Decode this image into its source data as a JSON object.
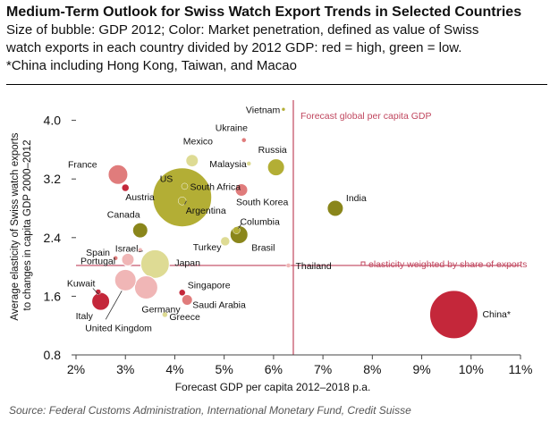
{
  "header": {
    "title": "Medium-Term Outlook for Swiss Watch Export Trends in Selected Countries",
    "subtitle_lines": [
      "Size of bubble: GDP 2012; Color: Market penetration, defined as value of Swiss",
      "watch exports in each country divided by 2012 GDP: red = high, green = low.",
      "*China including Hong Kong, Taiwan, and Macao"
    ]
  },
  "source": "Source: Federal Customs Administration, International Monetary Fund, Credit Suisse",
  "colors": {
    "red": "#c4273a",
    "pink": "#e07c7c",
    "lightpink": "#f0b6b6",
    "olive": "#8a861b",
    "yellow": "#b3ae35",
    "lightyellow": "#dedb94",
    "refline": "#c0465e",
    "axis": "#444444"
  },
  "chart_data": {
    "type": "scatter",
    "bubble": true,
    "xlabel": "Forecast GDP per capita 2012–2018 p.a.",
    "ylabel": "Average elasticity of Swiss watch exports to changes in capita GDP 2000–2012",
    "xlim": [
      2,
      11
    ],
    "ylim": [
      0.8,
      4.3
    ],
    "x_ticks": [
      2,
      3,
      4,
      5,
      6,
      7,
      8,
      9,
      10,
      11
    ],
    "x_tick_labels": [
      "2%",
      "3%",
      "4%",
      "5%",
      "6%",
      "7%",
      "8%",
      "9%",
      "10%",
      "11%"
    ],
    "y_ticks": [
      0.8,
      1.6,
      2.4,
      3.2,
      4.0
    ],
    "y_tick_labels": [
      "0.8",
      "1.6",
      "2.4",
      "3.2",
      "4.0"
    ],
    "reference_lines": [
      {
        "orientation": "vertical",
        "value": 6.4,
        "label": "Forecast global per capita GDP"
      },
      {
        "orientation": "horizontal",
        "value": 2.02,
        "label": "elasticity weighted by share of exports"
      }
    ],
    "points": [
      {
        "name": "Vietnam",
        "x": 6.2,
        "y": 4.15,
        "r": 2,
        "color": "yellow"
      },
      {
        "name": "Ukraine",
        "x": 5.4,
        "y": 3.73,
        "r": 2.5,
        "color": "pink"
      },
      {
        "name": "Mexico",
        "x": 4.35,
        "y": 3.45,
        "r": 7,
        "color": "lightyellow"
      },
      {
        "name": "Malaysia",
        "x": 5.5,
        "y": 3.41,
        "r": 2.5,
        "color": "lightyellow"
      },
      {
        "name": "Russia",
        "x": 6.05,
        "y": 3.36,
        "r": 9.5,
        "color": "yellow"
      },
      {
        "name": "France",
        "x": 2.85,
        "y": 3.26,
        "r": 11,
        "color": "pink"
      },
      {
        "name": "Austria",
        "x": 3.0,
        "y": 3.08,
        "r": 4,
        "color": "red"
      },
      {
        "name": "US",
        "x": 4.15,
        "y": 2.95,
        "r": 33,
        "color": "yellow"
      },
      {
        "name": "South Africa",
        "x": 4.2,
        "y": 3.1,
        "r": 3.5,
        "color": "yellow"
      },
      {
        "name": "Argentina",
        "x": 4.15,
        "y": 2.9,
        "r": 4.5,
        "color": "yellow"
      },
      {
        "name": "South Korea",
        "x": 5.35,
        "y": 3.05,
        "r": 7,
        "color": "pink"
      },
      {
        "name": "India",
        "x": 7.25,
        "y": 2.8,
        "r": 9,
        "color": "olive"
      },
      {
        "name": "Canada",
        "x": 3.3,
        "y": 2.5,
        "r": 8.5,
        "color": "olive"
      },
      {
        "name": "Columbia",
        "x": 5.25,
        "y": 2.5,
        "r": 4,
        "color": "yellow"
      },
      {
        "name": "Brasil",
        "x": 5.3,
        "y": 2.44,
        "r": 10,
        "color": "olive"
      },
      {
        "name": "Turkey",
        "x": 5.02,
        "y": 2.35,
        "r": 5,
        "color": "lightyellow"
      },
      {
        "name": "Thailand",
        "x": 6.3,
        "y": 2.02,
        "r": 2.5,
        "color": "lightpink"
      },
      {
        "name": "Spain",
        "x": 2.8,
        "y": 2.12,
        "r": 2.5,
        "color": "pink"
      },
      {
        "name": "Israel",
        "x": 3.3,
        "y": 2.23,
        "r": 2.5,
        "color": "lightpink"
      },
      {
        "name": "Portugal",
        "x": 3.05,
        "y": 2.1,
        "r": 7,
        "color": "lightpink"
      },
      {
        "name": "Japan",
        "x": 3.6,
        "y": 2.04,
        "r": 16,
        "color": "lightyellow"
      },
      {
        "name": "Kuwait",
        "x": 2.45,
        "y": 1.66,
        "r": 3,
        "color": "red"
      },
      {
        "name": "Italy",
        "x": 2.5,
        "y": 1.53,
        "r": 10,
        "color": "red"
      },
      {
        "name": "United Kingdom",
        "x": 3.0,
        "y": 1.82,
        "r": 12,
        "color": "lightpink"
      },
      {
        "name": "Germany",
        "x": 3.42,
        "y": 1.72,
        "r": 13,
        "color": "lightpink"
      },
      {
        "name": "Singapore",
        "x": 4.15,
        "y": 1.65,
        "r": 3.5,
        "color": "red"
      },
      {
        "name": "Saudi Arabia",
        "x": 4.25,
        "y": 1.55,
        "r": 6,
        "color": "pink"
      },
      {
        "name": "Greece",
        "x": 3.8,
        "y": 1.35,
        "r": 3,
        "color": "lightyellow"
      },
      {
        "name": "China*",
        "x": 9.65,
        "y": 1.35,
        "r": 27,
        "color": "red"
      }
    ]
  }
}
